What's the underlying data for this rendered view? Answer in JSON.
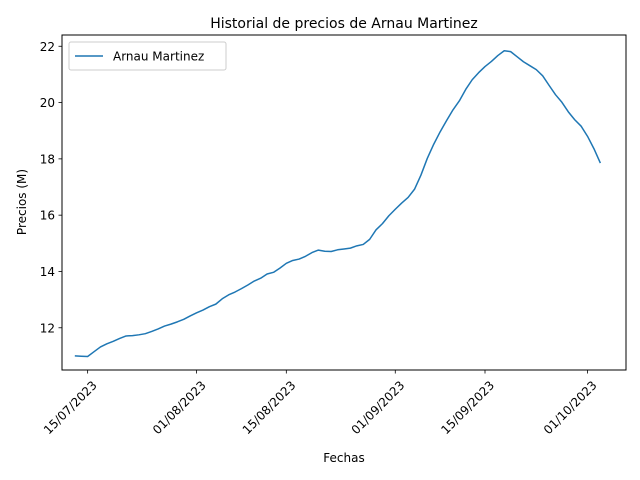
{
  "chart_data": {
    "type": "line",
    "title": "Historial de precios de Arnau Martinez",
    "xlabel": "Fechas",
    "ylabel": "Precios (M)",
    "x_tick_labels": [
      "15/07/2023",
      "01/08/2023",
      "15/08/2023",
      "01/09/2023",
      "15/09/2023",
      "01/10/2023"
    ],
    "x_tick_dates": [
      "2023-07-15",
      "2023-08-01",
      "2023-08-15",
      "2023-09-01",
      "2023-09-15",
      "2023-10-01"
    ],
    "y_ticks": [
      12,
      14,
      16,
      18,
      20,
      22
    ],
    "y_tick_labels": [
      "12",
      "14",
      "16",
      "18",
      "20",
      "22"
    ],
    "xlim": [
      "2023-07-11",
      "2023-10-07"
    ],
    "ylim": [
      10.5,
      22.4
    ],
    "grid": false,
    "legend": "upper-left",
    "color": "#1f77b4",
    "series": [
      {
        "name": "Arnau Martinez",
        "x": [
          "2023-07-13",
          "2023-07-14",
          "2023-07-15",
          "2023-07-16",
          "2023-07-17",
          "2023-07-18",
          "2023-07-19",
          "2023-07-20",
          "2023-07-21",
          "2023-07-22",
          "2023-07-23",
          "2023-07-24",
          "2023-07-25",
          "2023-07-26",
          "2023-07-27",
          "2023-07-28",
          "2023-07-29",
          "2023-07-30",
          "2023-07-31",
          "2023-08-01",
          "2023-08-02",
          "2023-08-03",
          "2023-08-04",
          "2023-08-05",
          "2023-08-06",
          "2023-08-07",
          "2023-08-08",
          "2023-08-09",
          "2023-08-10",
          "2023-08-11",
          "2023-08-12",
          "2023-08-13",
          "2023-08-14",
          "2023-08-15",
          "2023-08-16",
          "2023-08-17",
          "2023-08-18",
          "2023-08-19",
          "2023-08-20",
          "2023-08-21",
          "2023-08-22",
          "2023-08-23",
          "2023-08-24",
          "2023-08-25",
          "2023-08-26",
          "2023-08-27",
          "2023-08-28",
          "2023-08-29",
          "2023-08-30",
          "2023-08-31",
          "2023-09-01",
          "2023-09-02",
          "2023-09-03",
          "2023-09-04",
          "2023-09-05",
          "2023-09-06",
          "2023-09-07",
          "2023-09-08",
          "2023-09-09",
          "2023-09-10",
          "2023-09-11",
          "2023-09-12",
          "2023-09-13",
          "2023-09-14",
          "2023-09-15",
          "2023-09-16",
          "2023-09-17",
          "2023-09-18",
          "2023-09-19",
          "2023-09-20",
          "2023-09-21",
          "2023-09-22",
          "2023-09-23",
          "2023-09-24",
          "2023-09-25",
          "2023-09-26",
          "2023-09-27",
          "2023-09-28",
          "2023-09-29",
          "2023-09-30",
          "2023-10-01",
          "2023-10-02",
          "2023-10-03"
        ],
        "values": [
          11.0,
          10.99,
          10.98,
          11.15,
          11.32,
          11.43,
          11.52,
          11.62,
          11.71,
          11.72,
          11.75,
          11.79,
          11.87,
          11.96,
          12.06,
          12.13,
          12.21,
          12.3,
          12.42,
          12.53,
          12.63,
          12.75,
          12.84,
          13.03,
          13.17,
          13.27,
          13.39,
          13.52,
          13.66,
          13.76,
          13.91,
          13.97,
          14.12,
          14.29,
          14.39,
          14.44,
          14.54,
          14.67,
          14.76,
          14.72,
          14.71,
          14.77,
          14.8,
          14.83,
          14.91,
          14.96,
          15.14,
          15.48,
          15.7,
          15.98,
          16.21,
          16.43,
          16.63,
          16.92,
          17.42,
          18.02,
          18.52,
          18.96,
          19.36,
          19.74,
          20.06,
          20.47,
          20.81,
          21.06,
          21.28,
          21.46,
          21.67,
          21.84,
          21.81,
          21.63,
          21.45,
          21.31,
          21.17,
          20.95,
          20.61,
          20.28,
          20.01,
          19.67,
          19.39,
          19.16,
          18.8,
          18.36,
          17.85
        ]
      }
    ]
  }
}
